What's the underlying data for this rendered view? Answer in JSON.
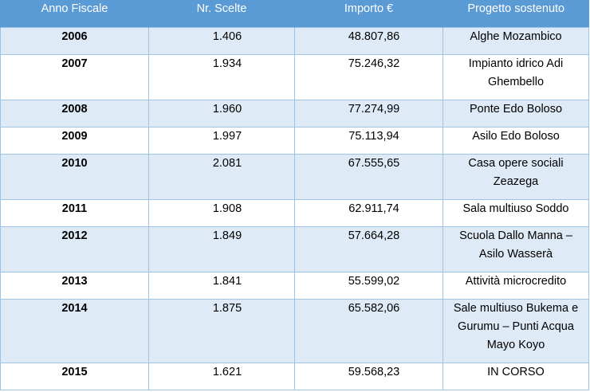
{
  "headers": [
    "Anno Fiscale",
    "Nr. Scelte",
    "Importo €",
    "Progetto sostenuto"
  ],
  "rows": [
    {
      "anno": "2006",
      "scelte": "1.406",
      "importo": "48.807,86",
      "progetto": "Alghe Mozambico"
    },
    {
      "anno": "2007",
      "scelte": "1.934",
      "importo": "75.246,32",
      "progetto": "Impianto idrico Adi Ghembello"
    },
    {
      "anno": "2008",
      "scelte": "1.960",
      "importo": "77.274,99",
      "progetto": "Ponte Edo Boloso"
    },
    {
      "anno": "2009",
      "scelte": "1.997",
      "importo": "75.113,94",
      "progetto": "Asilo Edo Boloso"
    },
    {
      "anno": "2010",
      "scelte": "2.081",
      "importo": "67.555,65",
      "progetto": "Casa opere sociali Zeazega"
    },
    {
      "anno": "2011",
      "scelte": "1.908",
      "importo": "62.911,74",
      "progetto": "Sala multiuso Soddo"
    },
    {
      "anno": "2012",
      "scelte": "1.849",
      "importo": "57.664,28",
      "progetto": "Scuola Dallo Manna – Asilo Wasserà"
    },
    {
      "anno": "2013",
      "scelte": "1.841",
      "importo": "55.599,02",
      "progetto": "Attività microcredito"
    },
    {
      "anno": "2014",
      "scelte": "1.875",
      "importo": "65.582,06",
      "progetto": "Sale multiuso Bukema e Gurumu – Punti Acqua Mayo Koyo"
    },
    {
      "anno": "2015",
      "scelte": "1.621",
      "importo": "59.568,23",
      "progetto": "IN CORSO"
    }
  ],
  "colors": {
    "header_bg": "#5b9bd5",
    "band_bg": "#deeaf6",
    "border": "#9dc3e6"
  }
}
